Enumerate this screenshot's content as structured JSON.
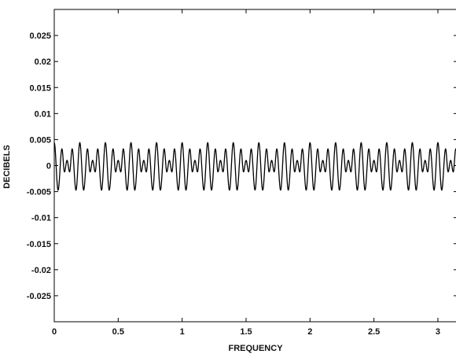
{
  "chart_data": {
    "type": "line",
    "title": "",
    "xlabel": "FREQUENCY",
    "ylabel": "DECIBELS",
    "xlim": [
      0,
      3.14159
    ],
    "ylim": [
      -0.03,
      0.03
    ],
    "xticks": [
      0,
      0.5,
      1,
      1.5,
      2,
      2.5,
      3
    ],
    "xtick_labels": [
      "0",
      "0.5",
      "1",
      "1.5",
      "2",
      "2.5",
      "3"
    ],
    "yticks": [
      0.025,
      0.02,
      0.015,
      0.01,
      0.005,
      0,
      -0.005,
      -0.01,
      -0.015,
      -0.02,
      -0.025
    ],
    "ytick_labels": [
      "0.025",
      "0.02",
      "0.015",
      "0.01",
      "0.005",
      "0",
      "-0.005",
      "-0.01",
      "-0.015",
      "-0.02",
      "-0.025"
    ],
    "grid": false,
    "line_color": "#000000",
    "series": [
      {
        "period": 0.2,
        "max": 0.0045,
        "min": -0.0048,
        "shape": [
          [
            0.0,
            0.0044
          ],
          [
            0.03,
            -0.0047
          ],
          [
            0.06,
            0.0032
          ],
          [
            0.08,
            -0.0012
          ],
          [
            0.1,
            0.001
          ],
          [
            0.12,
            -0.0012
          ],
          [
            0.14,
            0.0032
          ],
          [
            0.17,
            -0.0047
          ],
          [
            0.2,
            0.0044
          ]
        ]
      }
    ]
  }
}
